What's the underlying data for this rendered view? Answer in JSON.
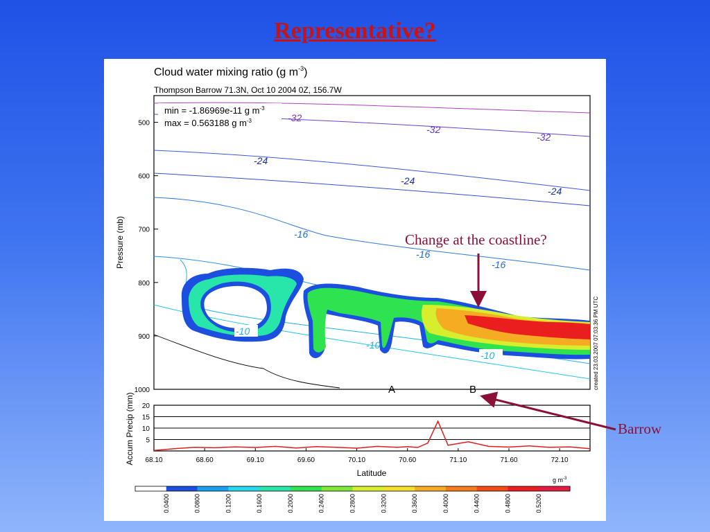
{
  "slide": {
    "title": "Representative?",
    "callouts": {
      "coastline": "Change at the coastline?",
      "barrow": "Barrow"
    }
  },
  "chart_data": [
    {
      "type": "contour",
      "title": "Cloud water mixing ratio (g m-3)",
      "title_text": "Cloud water mixing ratio (g m",
      "title_exp": "-3",
      "title_close": ")",
      "subtitle": "Thompson Barrow 71.3N, Oct 10 2004 0Z, 156.7W",
      "ylabel": "Pressure (mb)",
      "ylim": [
        1000,
        450
      ],
      "yticks": [
        "500",
        "600",
        "700",
        "800",
        "900",
        "1000"
      ],
      "stats": {
        "min_text": "min = -1.86969e-11 g m",
        "max_text": "max = 0.563188 g m",
        "exp": "-3"
      },
      "contour_labels": [
        "-32",
        "-32",
        "-32",
        "-24",
        "-24",
        "-24",
        "-16",
        "-16",
        "-16",
        "-10",
        "-10",
        "-10"
      ],
      "markers": [
        "A",
        "B"
      ],
      "created": "created 23.03.2007 07:03:36 PM UTC"
    },
    {
      "type": "line",
      "ylabel": "Accum Precip (mm)",
      "xlabel": "Latitude",
      "ylim": [
        0,
        20
      ],
      "yticks": [
        "5",
        "10",
        "15",
        "20"
      ],
      "xticks": [
        "68.10",
        "68.60",
        "69.10",
        "69.60",
        "70.10",
        "70.60",
        "71.10",
        "71.60",
        "72.10"
      ],
      "xlim": [
        68.1,
        72.4
      ],
      "series": [
        {
          "x": [
            68.1,
            68.3,
            68.5,
            68.7,
            68.9,
            69.1,
            69.3,
            69.5,
            69.7,
            69.9,
            70.1,
            70.3,
            70.5,
            70.6,
            70.7,
            70.8,
            70.9,
            71.0,
            71.2,
            71.4,
            71.6,
            71.8,
            72.0,
            72.2,
            72.4
          ],
          "y": [
            0.2,
            1.0,
            1.6,
            1.4,
            1.8,
            1.5,
            2.0,
            1.3,
            1.9,
            1.6,
            1.2,
            2.0,
            1.6,
            1.9,
            1.5,
            3.5,
            13,
            2.5,
            4.0,
            2.0,
            1.7,
            2.2,
            1.6,
            1.8,
            1.0
          ]
        }
      ]
    },
    {
      "type": "colorbar",
      "unit_text": "g m",
      "unit_exp": "-3",
      "ticks": [
        "0.0400",
        "0.0800",
        "0.1200",
        "0.1600",
        "0.2000",
        "0.2400",
        "0.2800",
        "0.3200",
        "0.3600",
        "0.4000",
        "0.4400",
        "0.4800",
        "0.5200"
      ],
      "colors": [
        "#ffffff",
        "#1c4fe0",
        "#1aa0ee",
        "#24d8ee",
        "#28e5aa",
        "#2ee250",
        "#7ee836",
        "#d6ee2e",
        "#f6de2a",
        "#f6ac22",
        "#f57c1c",
        "#f24a16",
        "#ea1e1e",
        "#e21c40"
      ]
    }
  ]
}
